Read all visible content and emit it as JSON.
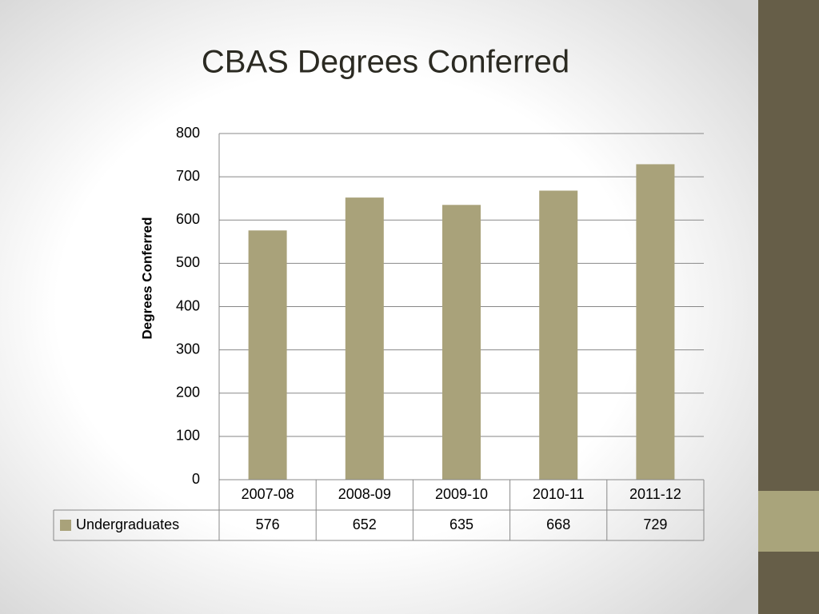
{
  "chart_data": {
    "type": "bar",
    "title": "CBAS Degrees Conferred",
    "y_label": "Degrees Conferred",
    "categories": [
      "2007-08",
      "2008-09",
      "2009-10",
      "2010-11",
      "2011-12"
    ],
    "series": [
      {
        "name": "Undergraduates",
        "color": "#a9a27a",
        "values": [
          576,
          652,
          635,
          668,
          729
        ]
      }
    ],
    "ylim": [
      0,
      800
    ],
    "yticks": [
      0,
      100,
      200,
      300,
      400,
      500,
      600,
      700,
      800
    ],
    "grid": true,
    "data_table": true
  }
}
